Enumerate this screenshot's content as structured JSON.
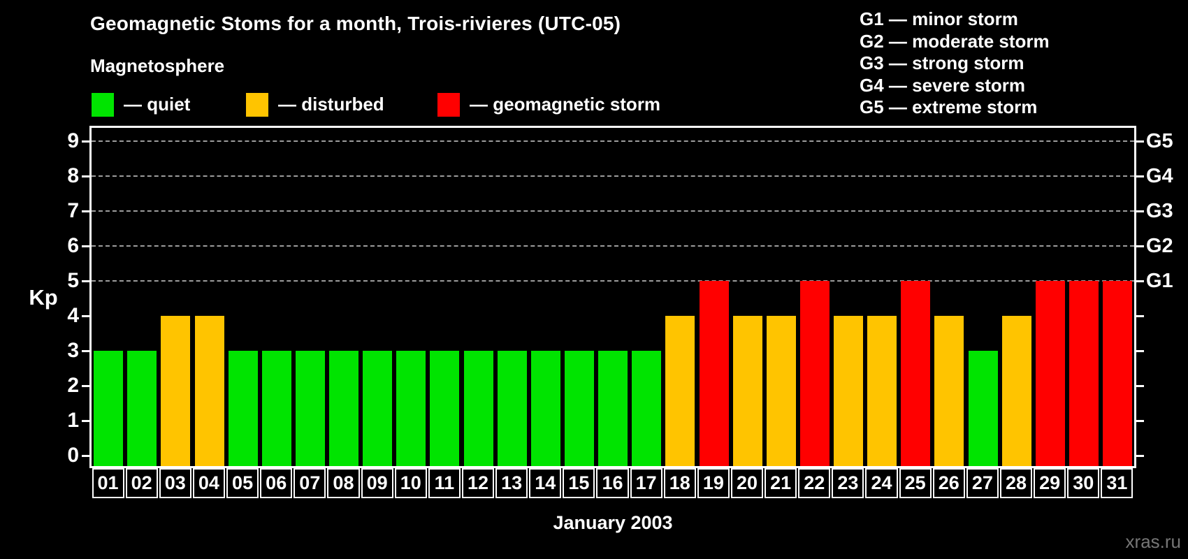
{
  "title": "Geomagnetic Stoms for a month, Trois-rivieres (UTC-05)",
  "legend": {
    "heading": "Magnetosphere",
    "items": [
      {
        "name": "quiet",
        "label": "— quiet",
        "color": "#00e400"
      },
      {
        "name": "disturbed",
        "label": "— disturbed",
        "color": "#ffc400"
      },
      {
        "name": "geomagnetic-storm",
        "label": "— geomagnetic storm",
        "color": "#ff0000"
      }
    ]
  },
  "gscale_legend": [
    "G1 — minor storm",
    "G2 — moderate storm",
    "G3 — strong storm",
    "G4 — severe storm",
    "G5 — extreme storm"
  ],
  "axes": {
    "y_left_label": "Kp",
    "y_left_ticks": [
      "0",
      "1",
      "2",
      "3",
      "4",
      "5",
      "6",
      "7",
      "8",
      "9"
    ],
    "y_right_ticks": [
      "G1",
      "G2",
      "G3",
      "G4",
      "G5"
    ],
    "x_label": "January 2003"
  },
  "watermark": "xras.ru",
  "chart_data": {
    "type": "bar",
    "title": "Geomagnetic Stoms for a month, Trois-rivieres (UTC-05)",
    "xlabel": "January 2003",
    "ylabel": "Kp",
    "ylim": [
      0,
      9
    ],
    "grid": "dashed horizontal lines at Kp 5-9 (G1-G5)",
    "gridline_levels": [
      5,
      6,
      7,
      8,
      9
    ],
    "right_axis": {
      "G1": 5,
      "G2": 6,
      "G3": 7,
      "G4": 8,
      "G5": 9
    },
    "categories": [
      "01",
      "02",
      "03",
      "04",
      "05",
      "06",
      "07",
      "08",
      "09",
      "10",
      "11",
      "12",
      "13",
      "14",
      "15",
      "16",
      "17",
      "18",
      "19",
      "20",
      "21",
      "22",
      "23",
      "24",
      "25",
      "26",
      "27",
      "28",
      "29",
      "30",
      "31"
    ],
    "values": [
      3,
      3,
      4,
      4,
      3,
      3,
      3,
      3,
      3,
      3,
      3,
      3,
      3,
      3,
      3,
      3,
      3,
      4,
      5,
      4,
      4,
      5,
      4,
      4,
      5,
      4,
      3,
      4,
      5,
      5,
      5
    ],
    "level_rules": {
      "quiet_max": 3,
      "storm_min": 5
    },
    "colors": {
      "quiet": "#00e400",
      "disturbed": "#ffc400",
      "storm": "#ff0000"
    },
    "legend_position": "top-left",
    "background": "#000000",
    "gridline_color": "#9c9c9c"
  }
}
